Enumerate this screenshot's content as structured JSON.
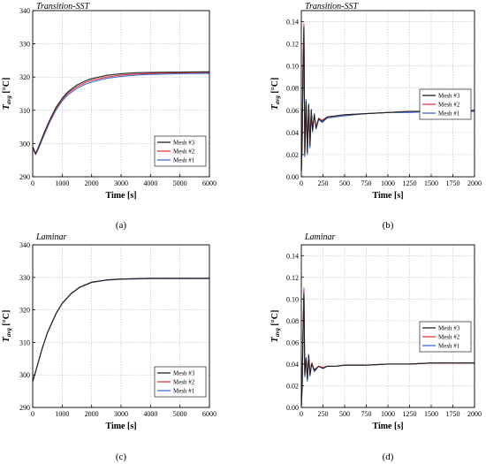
{
  "chart_data": [
    {
      "type": "line",
      "panel": "a",
      "title": "Transition-SST",
      "xlabel": "Time [s]",
      "ylabel_main": "T",
      "ylabel_sub": "avg",
      "ylabel_unit": " [°C]",
      "caption": "(a)",
      "xlim": [
        0,
        6000
      ],
      "ylim": [
        290,
        340
      ],
      "xticks": [
        "0",
        "1000",
        "2000",
        "3000",
        "4000",
        "5000",
        "6000"
      ],
      "yticks": [
        "290",
        "300",
        "310",
        "320",
        "330",
        "340"
      ],
      "grid": true,
      "legend": "bottom-right",
      "series": [
        {
          "name": "Mesh #3",
          "color": "#222222",
          "x": [
            0,
            100,
            200,
            400,
            600,
            800,
            1000,
            1200,
            1500,
            1800,
            2000,
            2500,
            3000,
            3500,
            4000,
            5000,
            6000
          ],
          "y": [
            299,
            297,
            299,
            303.5,
            307.5,
            311,
            313.6,
            315.6,
            317.6,
            318.9,
            319.5,
            320.5,
            321,
            321.3,
            321.4,
            321.5,
            321.6
          ]
        },
        {
          "name": "Mesh #2",
          "color": "#e0393e",
          "x": [
            0,
            100,
            200,
            400,
            600,
            800,
            1000,
            1200,
            1500,
            1800,
            2000,
            2500,
            3000,
            3500,
            4000,
            5000,
            6000
          ],
          "y": [
            298.8,
            296.8,
            298.8,
            303.2,
            307.2,
            310.6,
            313.2,
            315.2,
            317.1,
            318.4,
            319,
            320,
            320.6,
            320.9,
            321.1,
            321.3,
            321.4
          ]
        },
        {
          "name": "Mesh #1",
          "color": "#3a6fd8",
          "x": [
            0,
            100,
            200,
            400,
            600,
            800,
            1000,
            1200,
            1500,
            1800,
            2000,
            2500,
            3000,
            3500,
            4000,
            5000,
            6000
          ],
          "y": [
            298.6,
            296.6,
            298.5,
            302.8,
            306.8,
            310.2,
            312.8,
            314.7,
            316.6,
            317.9,
            318.5,
            319.6,
            320.2,
            320.6,
            320.8,
            321,
            321.1
          ]
        }
      ]
    },
    {
      "type": "line",
      "panel": "b",
      "title": "Transition-SST",
      "xlabel": "Time [s]",
      "ylabel_main": "T",
      "ylabel_sub": "avg",
      "ylabel_unit": " [°C]",
      "caption": "(b)",
      "xlim": [
        0,
        2000
      ],
      "ylim": [
        0,
        0.15
      ],
      "xticks": [
        "0",
        "250",
        "500",
        "750",
        "1000",
        "1250",
        "1500",
        "1750",
        "2000"
      ],
      "yticks": [
        "0.00",
        "0.02",
        "0.04",
        "0.06",
        "0.08",
        "0.10",
        "0.12",
        "0.14"
      ],
      "grid": true,
      "legend": "center-right",
      "series": [
        {
          "name": "Mesh #3",
          "color": "#222222",
          "x": [
            0,
            10,
            20,
            30,
            40,
            55,
            70,
            85,
            100,
            115,
            130,
            150,
            170,
            200,
            240,
            300,
            400,
            500,
            750,
            1000,
            1250,
            1500,
            1750,
            2000
          ],
          "y": [
            0.005,
            0.03,
            0.1,
            0.135,
            0.02,
            0.068,
            0.022,
            0.065,
            0.028,
            0.06,
            0.042,
            0.056,
            0.044,
            0.052,
            0.05,
            0.054,
            0.055,
            0.056,
            0.057,
            0.058,
            0.059,
            0.059,
            0.059,
            0.06
          ]
        },
        {
          "name": "Mesh #2",
          "color": "#e0393e",
          "x": [
            0,
            10,
            20,
            30,
            40,
            55,
            70,
            85,
            100,
            115,
            130,
            150,
            170,
            200,
            240,
            300,
            400,
            500,
            750,
            1000,
            1250,
            1500,
            1750,
            2000
          ],
          "y": [
            0.005,
            0.03,
            0.1,
            0.138,
            0.022,
            0.066,
            0.025,
            0.063,
            0.03,
            0.058,
            0.044,
            0.055,
            0.045,
            0.053,
            0.051,
            0.054,
            0.055,
            0.056,
            0.057,
            0.058,
            0.059,
            0.059,
            0.059,
            0.06
          ]
        },
        {
          "name": "Mesh #1",
          "color": "#3a6fd8",
          "x": [
            0,
            10,
            20,
            30,
            40,
            55,
            70,
            85,
            100,
            115,
            130,
            150,
            170,
            200,
            240,
            300,
            400,
            500,
            750,
            1000,
            1250,
            1500,
            1750,
            2000
          ],
          "y": [
            0.005,
            0.03,
            0.1,
            0.13,
            0.018,
            0.07,
            0.02,
            0.066,
            0.026,
            0.061,
            0.04,
            0.057,
            0.043,
            0.052,
            0.049,
            0.053,
            0.054,
            0.055,
            0.057,
            0.058,
            0.058,
            0.059,
            0.059,
            0.059
          ]
        }
      ]
    },
    {
      "type": "line",
      "panel": "c",
      "title": "Laminar",
      "xlabel": "Time [s]",
      "ylabel_main": "T",
      "ylabel_sub": "avg",
      "ylabel_unit": " [°C]",
      "caption": "(c)",
      "xlim": [
        0,
        6000
      ],
      "ylim": [
        290,
        340
      ],
      "xticks": [
        "0",
        "1000",
        "2000",
        "3000",
        "4000",
        "5000",
        "6000"
      ],
      "yticks": [
        "290",
        "300",
        "310",
        "320",
        "330",
        "340"
      ],
      "grid": true,
      "legend": "bottom-right",
      "series": [
        {
          "name": "Mesh #3",
          "color": "#222222",
          "x": [
            0,
            100,
            300,
            500,
            800,
            1000,
            1300,
            1600,
            2000,
            2500,
            3000,
            3500,
            4000,
            5000,
            6000
          ],
          "y": [
            298,
            301,
            307.5,
            313,
            319,
            322,
            325,
            327,
            328.5,
            329.2,
            329.5,
            329.6,
            329.7,
            329.7,
            329.7
          ]
        },
        {
          "name": "Mesh #2",
          "color": "#e0393e",
          "x": [
            0,
            100,
            300,
            500,
            800,
            1000,
            1300,
            1600,
            2000,
            2500,
            3000,
            3500,
            4000,
            5000,
            6000
          ],
          "y": [
            298,
            301,
            307.5,
            313,
            319,
            322,
            325,
            327,
            328.5,
            329.2,
            329.5,
            329.6,
            329.7,
            329.7,
            329.7
          ]
        },
        {
          "name": "Mesh #1",
          "color": "#3a6fd8",
          "x": [
            0,
            100,
            300,
            500,
            800,
            1000,
            1300,
            1600,
            2000,
            2500,
            3000,
            3500,
            4000,
            5000,
            6000
          ],
          "y": [
            298,
            301,
            307.4,
            312.9,
            318.9,
            321.9,
            324.9,
            326.9,
            328.4,
            329.1,
            329.4,
            329.5,
            329.6,
            329.6,
            329.6
          ]
        }
      ]
    },
    {
      "type": "line",
      "panel": "d",
      "title": "Laminar",
      "xlabel": "Time [s]",
      "ylabel_main": "T",
      "ylabel_sub": "avg",
      "ylabel_unit": " [°C]",
      "caption": "(d)",
      "xlim": [
        0,
        2000
      ],
      "ylim": [
        0,
        0.15
      ],
      "xticks": [
        "0",
        "250",
        "500",
        "750",
        "1000",
        "1250",
        "1500",
        "1750",
        "2000"
      ],
      "yticks": [
        "0.00",
        "0.02",
        "0.04",
        "0.06",
        "0.08",
        "0.10",
        "0.12",
        "0.14"
      ],
      "grid": true,
      "legend": "center-right",
      "series": [
        {
          "name": "Mesh #3",
          "color": "#222222",
          "x": [
            0,
            10,
            20,
            30,
            40,
            55,
            70,
            85,
            100,
            120,
            150,
            200,
            250,
            300,
            400,
            500,
            750,
            1000,
            1250,
            1500,
            1750,
            2000
          ],
          "y": [
            0.002,
            0.02,
            0.07,
            0.105,
            0.03,
            0.045,
            0.026,
            0.048,
            0.03,
            0.04,
            0.034,
            0.038,
            0.036,
            0.038,
            0.038,
            0.039,
            0.039,
            0.04,
            0.04,
            0.041,
            0.041,
            0.041
          ]
        },
        {
          "name": "Mesh #2",
          "color": "#e0393e",
          "x": [
            0,
            10,
            20,
            30,
            40,
            55,
            70,
            85,
            100,
            120,
            150,
            200,
            250,
            300,
            400,
            500,
            750,
            1000,
            1250,
            1500,
            1750,
            2000
          ],
          "y": [
            0.002,
            0.02,
            0.07,
            0.108,
            0.032,
            0.044,
            0.028,
            0.047,
            0.031,
            0.041,
            0.035,
            0.038,
            0.037,
            0.038,
            0.038,
            0.039,
            0.039,
            0.04,
            0.04,
            0.041,
            0.041,
            0.041
          ]
        },
        {
          "name": "Mesh #1",
          "color": "#3a6fd8",
          "x": [
            0,
            10,
            20,
            30,
            40,
            55,
            70,
            85,
            100,
            120,
            150,
            200,
            250,
            300,
            400,
            500,
            750,
            1000,
            1250,
            1500,
            1750,
            2000
          ],
          "y": [
            0.002,
            0.02,
            0.072,
            0.11,
            0.028,
            0.046,
            0.024,
            0.049,
            0.029,
            0.041,
            0.033,
            0.038,
            0.036,
            0.038,
            0.038,
            0.039,
            0.039,
            0.04,
            0.04,
            0.041,
            0.041,
            0.041
          ]
        }
      ]
    }
  ]
}
